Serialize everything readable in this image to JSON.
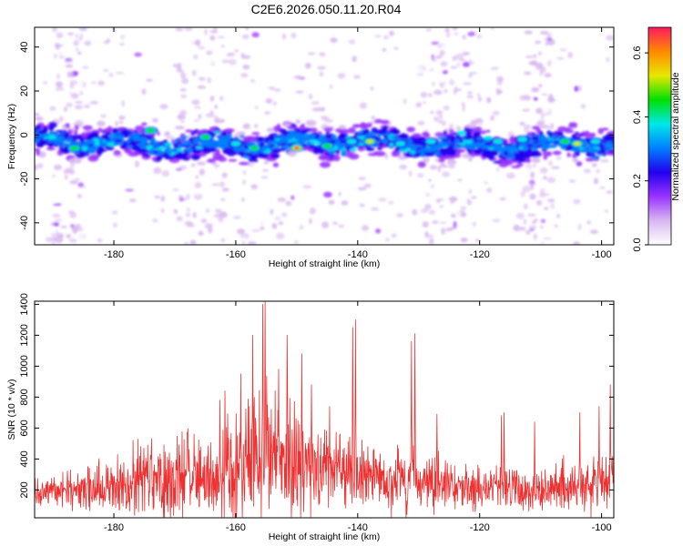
{
  "title": "C2E6.2026.050.11.20.R04",
  "colors": {
    "trace": "#ee3030",
    "axis": "#000000",
    "colormap": [
      "#ffffff",
      "#d8b8f0",
      "#9933ff",
      "#2200ee",
      "#0080ff",
      "#00e8e8",
      "#00e000",
      "#e8e800",
      "#ff8800",
      "#ff1a60"
    ]
  },
  "chart_data": [
    {
      "type": "heatmap",
      "xlabel": "Height of straight line (km)",
      "ylabel": "Frequency (Hz)",
      "xlim": [
        -193,
        -98
      ],
      "ylim": [
        -50,
        49
      ],
      "xticks": [
        -180,
        -160,
        -140,
        -120,
        -100
      ],
      "yticks": [
        -40,
        -20,
        0,
        20,
        40
      ],
      "colorbar": {
        "label": "Normalized spectral amplitude",
        "range": [
          0.0,
          0.68
        ],
        "ticks": [
          0.0,
          0.2,
          0.4,
          0.6
        ]
      },
      "band": {
        "center_freq_hz": -4,
        "half_width_hz": 6
      },
      "hotspots": [
        {
          "x": -186.5,
          "f": -6,
          "v": 0.45
        },
        {
          "x": -174,
          "f": 2,
          "v": 0.5
        },
        {
          "x": -165,
          "f": -1,
          "v": 0.45
        },
        {
          "x": -160,
          "f": -4,
          "v": 0.42
        },
        {
          "x": -157,
          "f": -6,
          "v": 0.45
        },
        {
          "x": -150,
          "f": -6,
          "v": 0.68
        },
        {
          "x": -145,
          "f": -5,
          "v": 0.45
        },
        {
          "x": -141,
          "f": -3,
          "v": 0.42
        },
        {
          "x": -138,
          "f": -3,
          "v": 0.6
        },
        {
          "x": -133,
          "f": -4,
          "v": 0.42
        },
        {
          "x": -128,
          "f": -3,
          "v": 0.4
        },
        {
          "x": -117,
          "f": -3,
          "v": 0.42
        },
        {
          "x": -113,
          "f": -2,
          "v": 0.42
        },
        {
          "x": -106,
          "f": -3,
          "v": 0.45
        },
        {
          "x": -104,
          "f": -4,
          "v": 0.55
        },
        {
          "x": -101,
          "f": -3,
          "v": 0.42
        }
      ]
    },
    {
      "type": "line",
      "xlabel": "Height of straight line (km)",
      "ylabel": "SNR (10 * v/v)",
      "xlim": [
        -193,
        -98
      ],
      "ylim": [
        20,
        1420
      ],
      "xticks": [
        -180,
        -160,
        -140,
        -120,
        -100
      ],
      "yticks": [
        200,
        400,
        600,
        800,
        1000,
        1200,
        1400
      ],
      "series": [
        {
          "name": "SNR",
          "envelope": {
            "x": [
              -193,
              -188,
              -184,
              -180,
              -176,
              -172,
              -168,
              -164,
              -162,
              -160,
              -158,
              -156,
              -155,
              -154,
              -152,
              -150,
              -148,
              -146,
              -144,
              -142,
              -140,
              -138,
              -136,
              -134,
              -132,
              -130,
              -128,
              -126,
              -124,
              -122,
              -120,
              -118,
              -116,
              -114,
              -112,
              -110,
              -108,
              -106,
              -104,
              -102,
              -100,
              -98
            ],
            "median": [
              200,
              190,
              200,
              210,
              230,
              240,
              245,
              260,
              280,
              290,
              320,
              360,
              380,
              360,
              340,
              330,
              320,
              300,
              290,
              300,
              290,
              280,
              260,
              250,
              260,
              260,
              250,
              240,
              220,
              200,
              190,
              200,
              210,
              200,
              180,
              190,
              200,
              210,
              220,
              230,
              230,
              220
            ],
            "upper": [
              330,
              320,
              360,
              420,
              520,
              560,
              560,
              560,
              620,
              700,
              780,
              900,
              960,
              900,
              820,
              760,
              700,
              640,
              600,
              600,
              560,
              500,
              480,
              470,
              470,
              460,
              440,
              420,
              380,
              350,
              340,
              380,
              420,
              380,
              330,
              340,
              380,
              420,
              430,
              440,
              430,
              400
            ]
          },
          "peaks": [
            {
              "x": -176.2,
              "y": 400
            },
            {
              "x": -175.8,
              "y": 420
            },
            {
              "x": -175.6,
              "y": 480
            },
            {
              "x": -168.0,
              "y": 570
            },
            {
              "x": -162.6,
              "y": 780
            },
            {
              "x": -161.8,
              "y": 840
            },
            {
              "x": -159.2,
              "y": 950
            },
            {
              "x": -157.2,
              "y": 1200
            },
            {
              "x": -155.6,
              "y": 1400
            },
            {
              "x": -155.2,
              "y": 1420
            },
            {
              "x": -153.0,
              "y": 980
            },
            {
              "x": -151.6,
              "y": 1200
            },
            {
              "x": -149.2,
              "y": 1080
            },
            {
              "x": -147.6,
              "y": 880
            },
            {
              "x": -144.6,
              "y": 740
            },
            {
              "x": -140.8,
              "y": 1250
            },
            {
              "x": -140.4,
              "y": 1300
            },
            {
              "x": -131.2,
              "y": 1160
            },
            {
              "x": -130.6,
              "y": 1210
            },
            {
              "x": -127.0,
              "y": 690
            },
            {
              "x": -116.4,
              "y": 680
            },
            {
              "x": -116.0,
              "y": 700
            },
            {
              "x": -111.0,
              "y": 640
            },
            {
              "x": -103.6,
              "y": 700
            },
            {
              "x": -100.4,
              "y": 740
            },
            {
              "x": -98.6,
              "y": 880
            }
          ]
        }
      ]
    }
  ]
}
